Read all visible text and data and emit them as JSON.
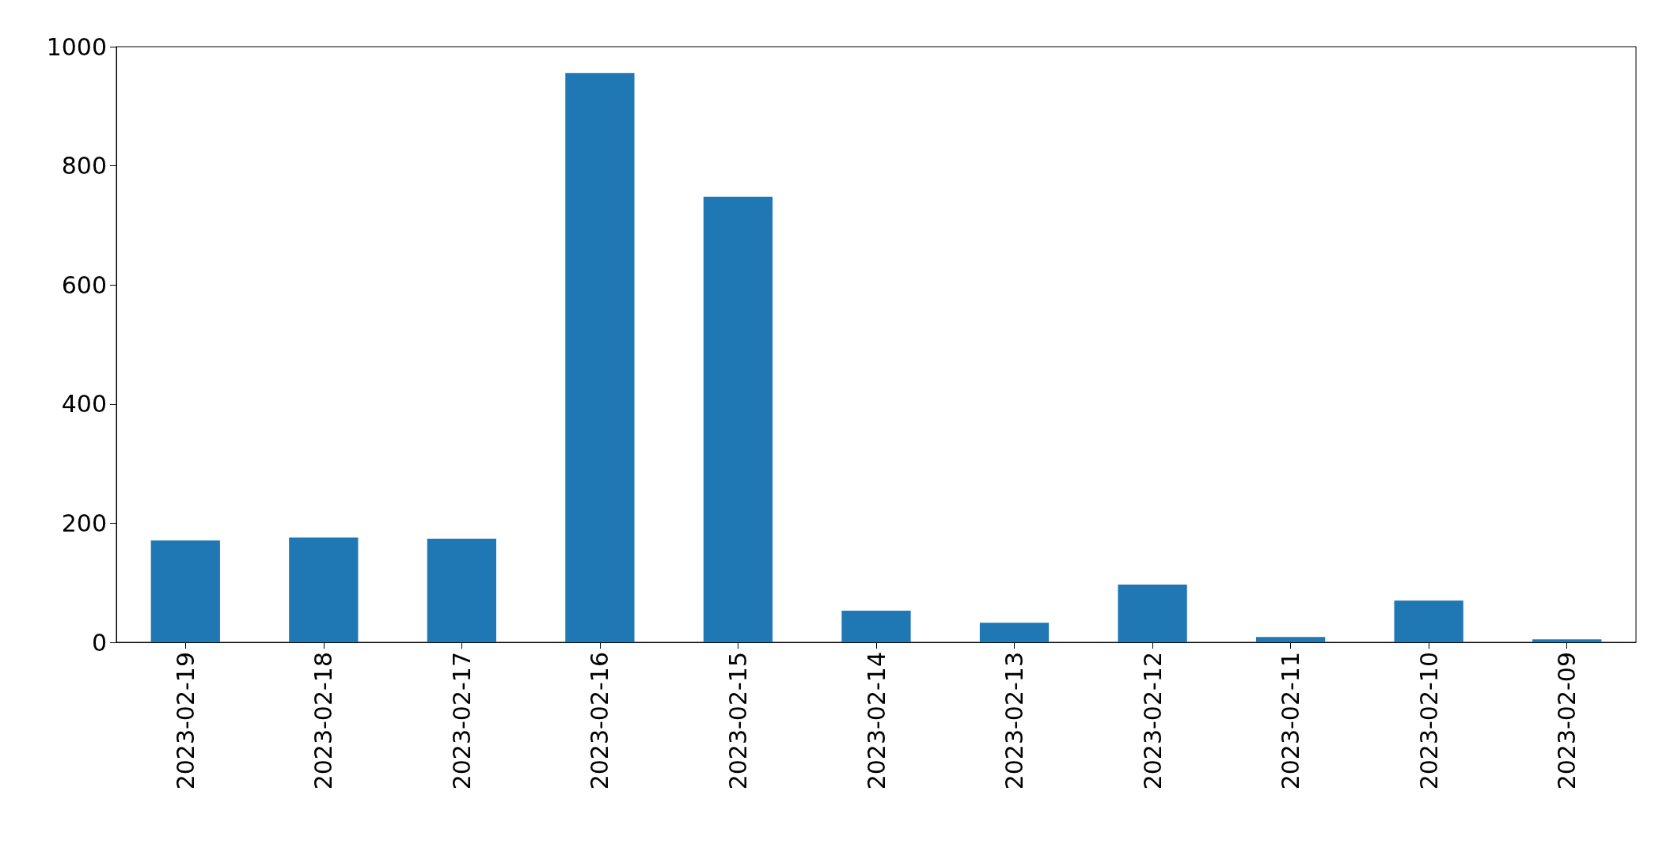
{
  "chart_data": {
    "type": "bar",
    "categories": [
      "2023-02-19",
      "2023-02-18",
      "2023-02-17",
      "2023-02-16",
      "2023-02-15",
      "2023-02-14",
      "2023-02-13",
      "2023-02-12",
      "2023-02-11",
      "2023-02-10",
      "2023-02-09"
    ],
    "values": [
      171,
      176,
      174,
      956,
      748,
      53,
      33,
      97,
      9,
      70,
      5
    ],
    "color": "#1f77b4",
    "ylim": [
      0,
      1000
    ],
    "yticks": [
      0,
      200,
      400,
      600,
      800,
      1000
    ],
    "grid": false
  }
}
